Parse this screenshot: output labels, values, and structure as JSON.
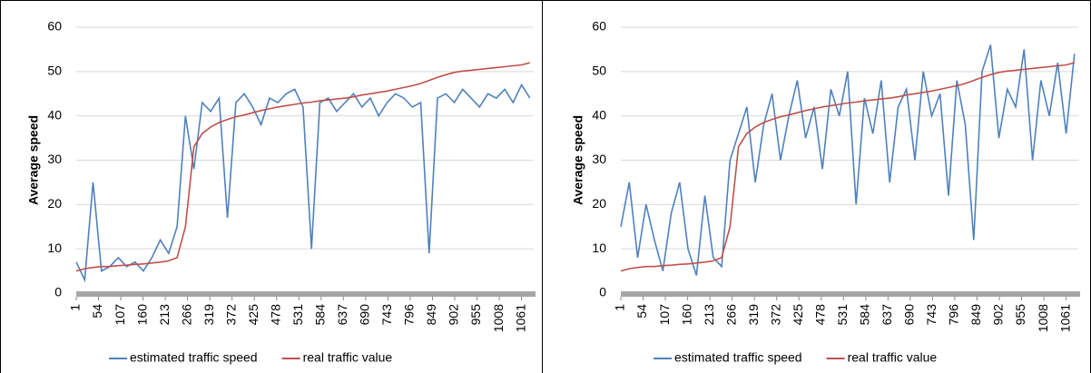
{
  "chart_data": [
    {
      "type": "line",
      "y_label": "Average speed",
      "xlim": [
        1,
        1090
      ],
      "ylim": [
        0,
        60
      ],
      "yticks": [
        0,
        10,
        20,
        30,
        40,
        50,
        60
      ],
      "xticks": [
        1,
        54,
        107,
        160,
        213,
        266,
        319,
        372,
        425,
        478,
        531,
        584,
        637,
        690,
        743,
        796,
        849,
        902,
        955,
        1008,
        1061
      ],
      "x": [
        1,
        21,
        41,
        61,
        81,
        101,
        121,
        141,
        161,
        181,
        201,
        221,
        241,
        261,
        281,
        301,
        321,
        341,
        361,
        381,
        401,
        421,
        441,
        461,
        481,
        501,
        521,
        541,
        561,
        581,
        601,
        621,
        641,
        661,
        681,
        701,
        721,
        741,
        761,
        781,
        801,
        821,
        841,
        861,
        881,
        901,
        921,
        941,
        961,
        981,
        1001,
        1021,
        1041,
        1061,
        1081
      ],
      "series": [
        {
          "name": "estimated traffic speed",
          "color": "#4f81bd",
          "values": [
            7,
            3,
            25,
            5,
            6,
            8,
            6,
            7,
            5,
            8,
            12,
            9,
            15,
            40,
            28,
            43,
            41,
            44,
            17,
            43,
            45,
            42,
            38,
            44,
            43,
            45,
            46,
            42,
            10,
            43,
            44,
            41,
            43,
            45,
            42,
            44,
            40,
            43,
            45,
            44,
            42,
            43,
            9,
            44,
            45,
            43,
            46,
            44,
            42,
            45,
            44,
            46,
            43,
            47,
            44
          ]
        },
        {
          "name": "real traffic value",
          "color": "#c0504d",
          "values": [
            5,
            5.5,
            5.8,
            6,
            6,
            6.2,
            6.3,
            6.5,
            6.6,
            6.8,
            7,
            7.3,
            8,
            15,
            33,
            36,
            37.5,
            38.5,
            39.2,
            39.8,
            40.2,
            40.7,
            41.2,
            41.6,
            42,
            42.3,
            42.6,
            42.9,
            43.1,
            43.4,
            43.6,
            43.8,
            44,
            44.3,
            44.7,
            45,
            45.3,
            45.6,
            46,
            46.4,
            46.8,
            47.3,
            48,
            48.7,
            49.3,
            49.8,
            50.1,
            50.3,
            50.5,
            50.7,
            50.9,
            51.1,
            51.3,
            51.5,
            52
          ]
        }
      ]
    },
    {
      "type": "line",
      "y_label": "Average speed",
      "xlim": [
        1,
        1090
      ],
      "ylim": [
        0,
        60
      ],
      "yticks": [
        0,
        10,
        20,
        30,
        40,
        50,
        60
      ],
      "xticks": [
        1,
        54,
        107,
        160,
        213,
        266,
        319,
        372,
        425,
        478,
        531,
        584,
        637,
        690,
        743,
        796,
        849,
        902,
        955,
        1008,
        1061
      ],
      "x": [
        1,
        21,
        41,
        61,
        81,
        101,
        121,
        141,
        161,
        181,
        201,
        221,
        241,
        261,
        281,
        301,
        321,
        341,
        361,
        381,
        401,
        421,
        441,
        461,
        481,
        501,
        521,
        541,
        561,
        581,
        601,
        621,
        641,
        661,
        681,
        701,
        721,
        741,
        761,
        781,
        801,
        821,
        841,
        861,
        881,
        901,
        921,
        941,
        961,
        981,
        1001,
        1021,
        1041,
        1061,
        1081
      ],
      "series": [
        {
          "name": "estimated traffic speed",
          "color": "#4f81bd",
          "values": [
            15,
            25,
            8,
            20,
            12,
            5,
            18,
            25,
            10,
            4,
            22,
            8,
            6,
            30,
            36,
            42,
            25,
            38,
            45,
            30,
            40,
            48,
            35,
            42,
            28,
            46,
            40,
            50,
            20,
            44,
            36,
            48,
            25,
            42,
            46,
            30,
            50,
            40,
            45,
            22,
            48,
            38,
            12,
            50,
            56,
            35,
            46,
            42,
            55,
            30,
            48,
            40,
            52,
            36,
            54
          ]
        },
        {
          "name": "real traffic value",
          "color": "#c0504d",
          "values": [
            5,
            5.5,
            5.8,
            6,
            6,
            6.2,
            6.3,
            6.5,
            6.6,
            6.8,
            7,
            7.3,
            8,
            15,
            33,
            36,
            37.5,
            38.5,
            39.2,
            39.8,
            40.2,
            40.7,
            41.2,
            41.6,
            42,
            42.3,
            42.6,
            42.9,
            43.1,
            43.4,
            43.6,
            43.8,
            44,
            44.3,
            44.7,
            45,
            45.3,
            45.6,
            46,
            46.4,
            46.8,
            47.3,
            48,
            48.7,
            49.3,
            49.8,
            50.1,
            50.3,
            50.5,
            50.7,
            50.9,
            51.1,
            51.3,
            51.5,
            52
          ]
        }
      ]
    }
  ]
}
